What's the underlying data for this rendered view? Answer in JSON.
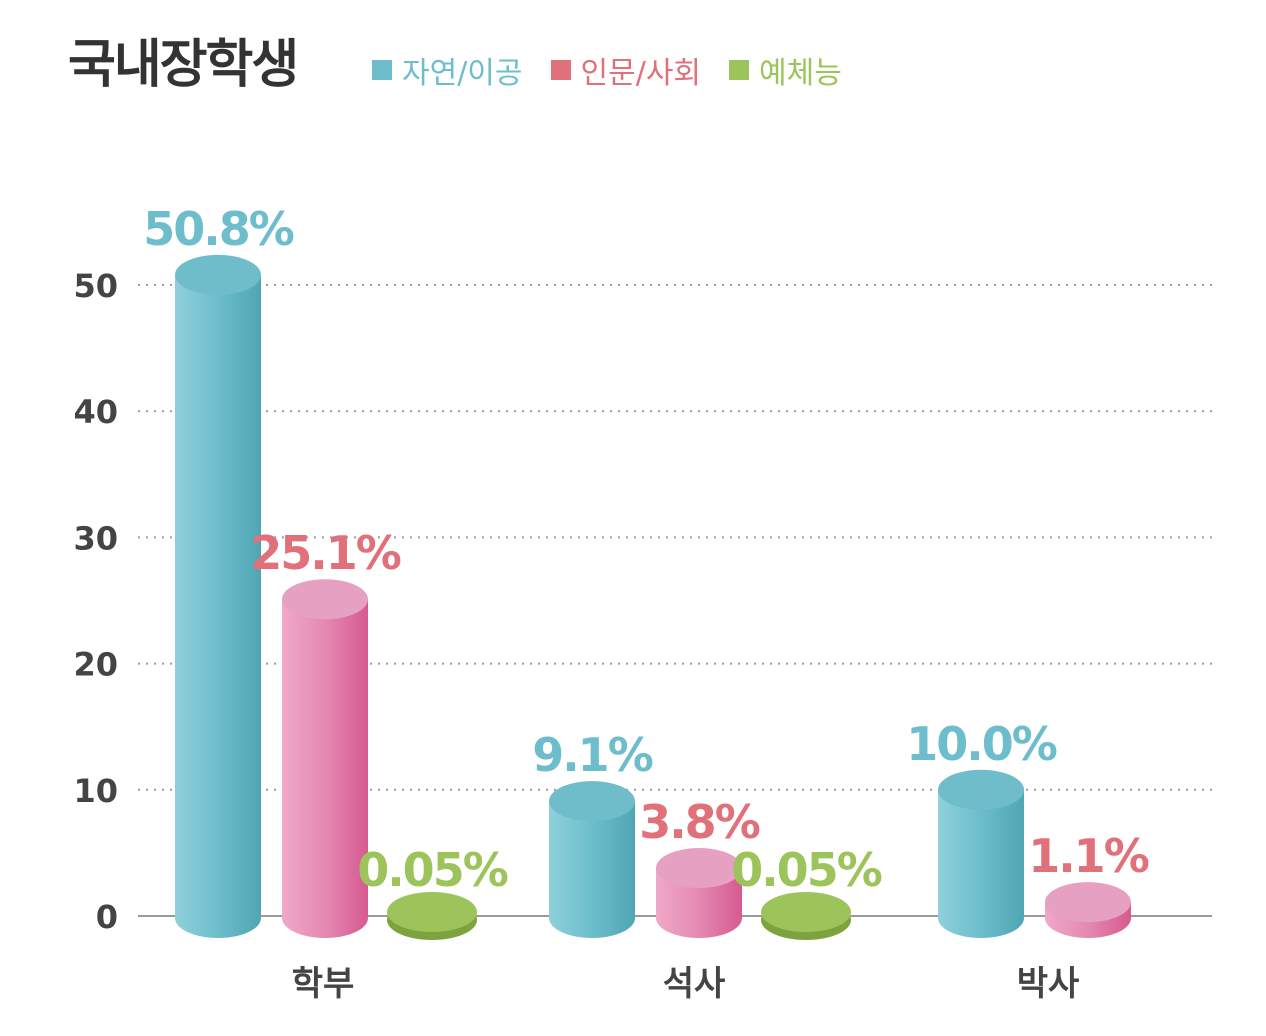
{
  "chart_data": {
    "type": "bar",
    "title": "국내장학생",
    "categories": [
      "학부",
      "석사",
      "박사"
    ],
    "series": [
      {
        "name": "자연/이공",
        "color": "#6dbdcc",
        "values": [
          50.8,
          9.1,
          10.0
        ],
        "labels": [
          "50.8%",
          "9.1%",
          "10.0%"
        ]
      },
      {
        "name": "인문/사회",
        "color": "#e0707a",
        "values": [
          25.1,
          3.8,
          1.1
        ],
        "labels": [
          "25.1%",
          "3.8%",
          "1.1%"
        ]
      },
      {
        "name": "예체능",
        "color": "#9cc45a",
        "values": [
          0.05,
          0.05,
          null
        ],
        "labels": [
          "0.05%",
          "0.05%",
          null
        ]
      }
    ],
    "yticks": [
      0,
      10,
      20,
      30,
      40,
      50
    ],
    "ylim": [
      0,
      50
    ],
    "grid": true,
    "legend_position": "top"
  }
}
